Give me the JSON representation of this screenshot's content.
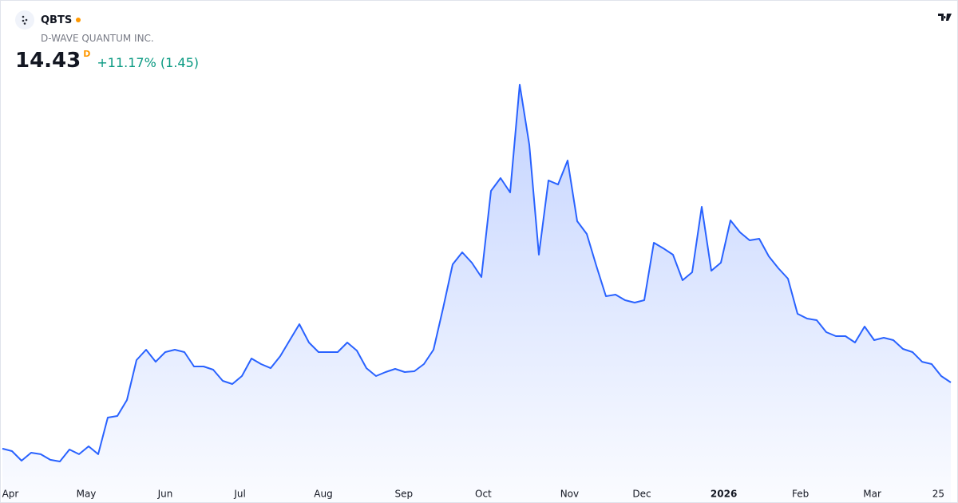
{
  "header": {
    "symbol": "QBTS",
    "name": "D-WAVE QUANTUM INC.",
    "price": 14.43,
    "price_suffix": "D",
    "change": "+11.17% (1.45)"
  },
  "chart_data": {
    "type": "area",
    "color": "#2962ff",
    "values": [
      7.91,
      7.67,
      6.73,
      7.51,
      7.36,
      6.81,
      6.65,
      7.83,
      7.36,
      8.14,
      7.36,
      10.97,
      11.13,
      12.7,
      16.63,
      17.65,
      16.47,
      17.42,
      17.65,
      17.42,
      16.0,
      16.0,
      15.69,
      14.59,
      14.27,
      15.06,
      16.79,
      16.24,
      15.84,
      17.02,
      18.6,
      20.17,
      18.36,
      17.42,
      17.42,
      17.42,
      18.36,
      17.57,
      15.84,
      15.06,
      15.45,
      15.77,
      15.45,
      15.53,
      16.24,
      17.65,
      21.74,
      26.06,
      27.24,
      26.22,
      24.81,
      33.29,
      34.55,
      33.14,
      43.75,
      37.85,
      27.01,
      34.32,
      33.92,
      36.28,
      30.31,
      29.05,
      25.91,
      22.92,
      23.08,
      22.53,
      22.29,
      22.53,
      28.19,
      27.63,
      27.01,
      24.49,
      25.28,
      31.72,
      25.43,
      26.22,
      30.39,
      29.21,
      28.42,
      28.58,
      26.85,
      25.67,
      24.65,
      21.19,
      20.72,
      20.56,
      19.38,
      18.99,
      18.99,
      18.36,
      19.93,
      18.6,
      18.83,
      18.6,
      17.73,
      17.42,
      16.47,
      16.24,
      15.06,
      14.43
    ],
    "ylim": [
      4.84,
      44.93
    ],
    "xticks": [
      {
        "value": 0.83,
        "label": "Apr"
      },
      {
        "value": 8.75,
        "label": "May"
      },
      {
        "value": 17,
        "label": "Jun"
      },
      {
        "value": 24.8,
        "label": "Jul"
      },
      {
        "value": 33.5,
        "label": "Aug"
      },
      {
        "value": 41.9,
        "label": "Sep"
      },
      {
        "value": 50.2,
        "label": "Oct"
      },
      {
        "value": 59.2,
        "label": "Nov"
      },
      {
        "value": 66.75,
        "label": "Dec"
      },
      {
        "value": 75.3,
        "label": "2026",
        "emphasis": true
      },
      {
        "value": 83.3,
        "label": "Feb"
      },
      {
        "value": 90.8,
        "label": "Mar"
      },
      {
        "value": 97.7,
        "label": "25"
      }
    ]
  }
}
